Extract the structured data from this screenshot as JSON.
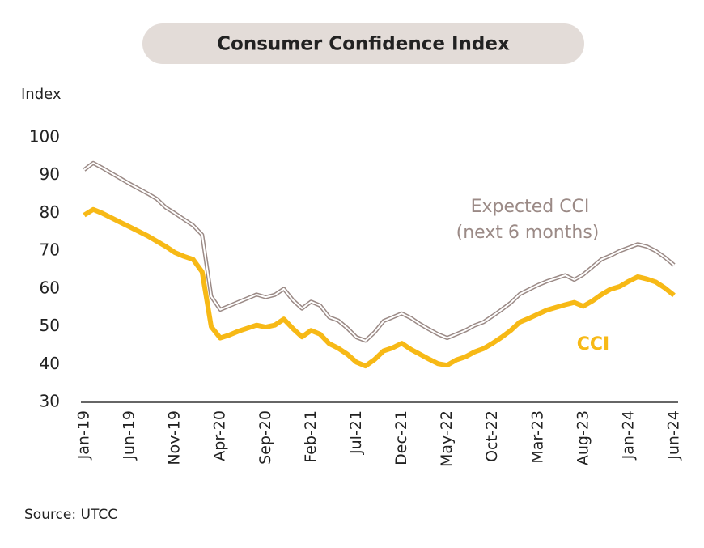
{
  "chart_data": {
    "type": "line",
    "title": "Consumer Confidence Index",
    "y_label": "Index",
    "source": "Source: UTCC",
    "annotation": "(next 6 months)",
    "categories": [
      "Jan-19",
      null,
      null,
      null,
      null,
      "Jun-19",
      null,
      null,
      null,
      null,
      "Nov-19",
      null,
      null,
      null,
      null,
      "Apr-20",
      null,
      null,
      null,
      null,
      "Sep-20",
      null,
      null,
      null,
      null,
      "Feb-21",
      null,
      null,
      null,
      null,
      "Jul-21",
      null,
      null,
      null,
      null,
      "Dec-21",
      null,
      null,
      null,
      null,
      "May-22",
      null,
      null,
      null,
      null,
      "Oct-22",
      null,
      null,
      null,
      null,
      "Mar-23",
      null,
      null,
      null,
      null,
      "Aug-23",
      null,
      null,
      null,
      null,
      "Jan-24",
      null,
      null,
      null,
      null,
      "Jun-24"
    ],
    "series": [
      {
        "name": "Expected CCI",
        "color": "#9b8a86",
        "style": "double",
        "values": [
          91.5,
          93.3,
          92,
          90.6,
          89.2,
          87.8,
          86.5,
          85.2,
          83.8,
          81.5,
          80,
          78.4,
          76.8,
          74.3,
          58,
          54.5,
          55.5,
          56.5,
          57.5,
          58.5,
          57.8,
          58.4,
          60,
          57,
          54.8,
          56.6,
          55.6,
          52.5,
          51.6,
          49.6,
          47.2,
          46.3,
          48.5,
          51.5,
          52.5,
          53.5,
          52.3,
          50.7,
          49.3,
          48,
          47,
          48,
          49,
          50.3,
          51.2,
          52.8,
          54.5,
          56.3,
          58.6,
          59.8,
          61,
          62,
          62.8,
          63.6,
          62.4,
          63.8,
          65.8,
          67.8,
          68.8,
          70,
          70.9,
          71.8,
          71.2,
          70,
          68.3,
          66.3
        ]
      },
      {
        "name": "CCI",
        "color": "#f7b916",
        "style": "solid",
        "values": [
          79.5,
          81,
          80,
          78.8,
          77.6,
          76.4,
          75.2,
          74,
          72.6,
          71.2,
          69.6,
          68.6,
          67.8,
          64.5,
          50,
          47,
          47.8,
          48.8,
          49.6,
          50.4,
          49.9,
          50.4,
          52,
          49.5,
          47.3,
          49,
          48,
          45.5,
          44.3,
          42.7,
          40.6,
          39.6,
          41.3,
          43.6,
          44.4,
          45.6,
          44,
          42.7,
          41.4,
          40.2,
          39.8,
          41.2,
          42,
          43.3,
          44.2,
          45.6,
          47.2,
          49,
          51.2,
          52.2,
          53.3,
          54.4,
          55.1,
          55.8,
          56.4,
          55.4,
          56.8,
          58.5,
          59.9,
          60.6,
          62,
          63.2,
          62.6,
          61.8,
          60.2,
          58.3
        ]
      }
    ],
    "ylim": [
      30,
      100
    ],
    "yticks": [
      30,
      40,
      50,
      60,
      70,
      80,
      90,
      100
    ]
  }
}
